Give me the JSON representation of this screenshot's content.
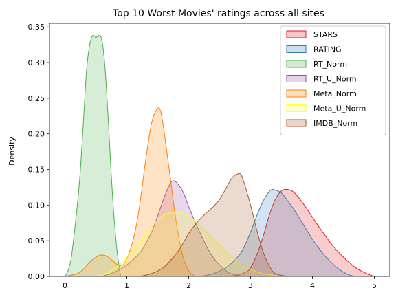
{
  "chart_data": {
    "type": "area",
    "title": "Top 10 Worst Movies' ratings across all sites",
    "xlabel": "",
    "ylabel": "Density",
    "xlim": [
      -0.25,
      5.25
    ],
    "ylim": [
      0,
      0.355
    ],
    "xticks": [
      "0",
      "1",
      "2",
      "3",
      "4",
      "5"
    ],
    "yticks": [
      "0.00",
      "0.05",
      "0.10",
      "0.15",
      "0.20",
      "0.25",
      "0.30",
      "0.35"
    ],
    "legend_position": "top-right",
    "series": [
      {
        "name": "STARS",
        "color": "#e41a1c",
        "points": [
          [
            2.7,
            0.0
          ],
          [
            2.9,
            0.005
          ],
          [
            3.0,
            0.012
          ],
          [
            3.1,
            0.03
          ],
          [
            3.2,
            0.055
          ],
          [
            3.3,
            0.085
          ],
          [
            3.4,
            0.108
          ],
          [
            3.5,
            0.12
          ],
          [
            3.6,
            0.122
          ],
          [
            3.7,
            0.118
          ],
          [
            3.8,
            0.108
          ],
          [
            3.9,
            0.096
          ],
          [
            4.0,
            0.083
          ],
          [
            4.1,
            0.07
          ],
          [
            4.2,
            0.058
          ],
          [
            4.3,
            0.046
          ],
          [
            4.4,
            0.036
          ],
          [
            4.5,
            0.027
          ],
          [
            4.6,
            0.019
          ],
          [
            4.7,
            0.012
          ],
          [
            4.8,
            0.007
          ],
          [
            4.9,
            0.003
          ],
          [
            5.0,
            0.0
          ]
        ]
      },
      {
        "name": "RATING",
        "color": "#377eb8",
        "points": [
          [
            2.2,
            0.0
          ],
          [
            2.4,
            0.004
          ],
          [
            2.6,
            0.012
          ],
          [
            2.8,
            0.028
          ],
          [
            2.9,
            0.042
          ],
          [
            3.0,
            0.062
          ],
          [
            3.1,
            0.085
          ],
          [
            3.2,
            0.105
          ],
          [
            3.3,
            0.119
          ],
          [
            3.35,
            0.122
          ],
          [
            3.4,
            0.121
          ],
          [
            3.5,
            0.117
          ],
          [
            3.6,
            0.106
          ],
          [
            3.7,
            0.094
          ],
          [
            3.8,
            0.08
          ],
          [
            3.9,
            0.066
          ],
          [
            4.0,
            0.052
          ],
          [
            4.1,
            0.04
          ],
          [
            4.2,
            0.029
          ],
          [
            4.3,
            0.02
          ],
          [
            4.4,
            0.012
          ],
          [
            4.5,
            0.006
          ],
          [
            4.6,
            0.002
          ],
          [
            4.7,
            0.0
          ]
        ]
      },
      {
        "name": "RT_Norm",
        "color": "#4daf4a",
        "points": [
          [
            0.0,
            0.0
          ],
          [
            0.05,
            0.008
          ],
          [
            0.1,
            0.025
          ],
          [
            0.15,
            0.06
          ],
          [
            0.2,
            0.1
          ],
          [
            0.25,
            0.15
          ],
          [
            0.3,
            0.22
          ],
          [
            0.35,
            0.29
          ],
          [
            0.4,
            0.325
          ],
          [
            0.45,
            0.338
          ],
          [
            0.5,
            0.335
          ],
          [
            0.55,
            0.338
          ],
          [
            0.6,
            0.33
          ],
          [
            0.65,
            0.29
          ],
          [
            0.7,
            0.22
          ],
          [
            0.75,
            0.14
          ],
          [
            0.8,
            0.075
          ],
          [
            0.85,
            0.03
          ],
          [
            0.9,
            0.0
          ]
        ]
      },
      {
        "name": "RT_U_Norm",
        "color": "#984ea3",
        "points": [
          [
            0.6,
            0.0
          ],
          [
            0.8,
            0.006
          ],
          [
            1.0,
            0.016
          ],
          [
            1.2,
            0.032
          ],
          [
            1.3,
            0.045
          ],
          [
            1.4,
            0.062
          ],
          [
            1.5,
            0.085
          ],
          [
            1.6,
            0.11
          ],
          [
            1.7,
            0.13
          ],
          [
            1.75,
            0.134
          ],
          [
            1.8,
            0.132
          ],
          [
            1.9,
            0.12
          ],
          [
            2.0,
            0.098
          ],
          [
            2.1,
            0.077
          ],
          [
            2.2,
            0.058
          ],
          [
            2.3,
            0.04
          ],
          [
            2.4,
            0.026
          ],
          [
            2.5,
            0.016
          ],
          [
            2.6,
            0.008
          ],
          [
            2.7,
            0.003
          ],
          [
            2.9,
            0.0
          ]
        ]
      },
      {
        "name": "Meta_Norm",
        "color": "#ff7f00",
        "points": [
          [
            0.0,
            0.0
          ],
          [
            0.2,
            0.004
          ],
          [
            0.3,
            0.01
          ],
          [
            0.4,
            0.02
          ],
          [
            0.5,
            0.027
          ],
          [
            0.6,
            0.03
          ],
          [
            0.7,
            0.027
          ],
          [
            0.8,
            0.02
          ],
          [
            0.85,
            0.016
          ],
          [
            0.9,
            0.015
          ],
          [
            0.95,
            0.017
          ],
          [
            1.0,
            0.025
          ],
          [
            1.1,
            0.05
          ],
          [
            1.2,
            0.095
          ],
          [
            1.3,
            0.16
          ],
          [
            1.4,
            0.215
          ],
          [
            1.5,
            0.236
          ],
          [
            1.55,
            0.23
          ],
          [
            1.6,
            0.205
          ],
          [
            1.7,
            0.14
          ],
          [
            1.8,
            0.075
          ],
          [
            1.9,
            0.03
          ],
          [
            2.0,
            0.008
          ],
          [
            2.1,
            0.0
          ]
        ]
      },
      {
        "name": "Meta_U_Norm",
        "color": "#ffff33",
        "points": [
          [
            0.5,
            0.0
          ],
          [
            0.7,
            0.006
          ],
          [
            0.9,
            0.018
          ],
          [
            1.0,
            0.027
          ],
          [
            1.2,
            0.048
          ],
          [
            1.4,
            0.07
          ],
          [
            1.6,
            0.086
          ],
          [
            1.8,
            0.09
          ],
          [
            2.0,
            0.085
          ],
          [
            2.2,
            0.07
          ],
          [
            2.4,
            0.052
          ],
          [
            2.6,
            0.035
          ],
          [
            2.8,
            0.02
          ],
          [
            3.0,
            0.01
          ],
          [
            3.2,
            0.004
          ],
          [
            3.5,
            0.0
          ]
        ]
      },
      {
        "name": "IMDB_Norm",
        "color": "#a65628",
        "points": [
          [
            1.2,
            0.0
          ],
          [
            1.4,
            0.004
          ],
          [
            1.6,
            0.013
          ],
          [
            1.8,
            0.032
          ],
          [
            1.9,
            0.045
          ],
          [
            2.0,
            0.06
          ],
          [
            2.1,
            0.072
          ],
          [
            2.2,
            0.082
          ],
          [
            2.3,
            0.09
          ],
          [
            2.4,
            0.098
          ],
          [
            2.5,
            0.108
          ],
          [
            2.6,
            0.123
          ],
          [
            2.7,
            0.138
          ],
          [
            2.8,
            0.144
          ],
          [
            2.85,
            0.142
          ],
          [
            2.9,
            0.13
          ],
          [
            3.0,
            0.1
          ],
          [
            3.1,
            0.065
          ],
          [
            3.2,
            0.035
          ],
          [
            3.3,
            0.015
          ],
          [
            3.4,
            0.004
          ],
          [
            3.6,
            0.0
          ]
        ]
      }
    ]
  }
}
